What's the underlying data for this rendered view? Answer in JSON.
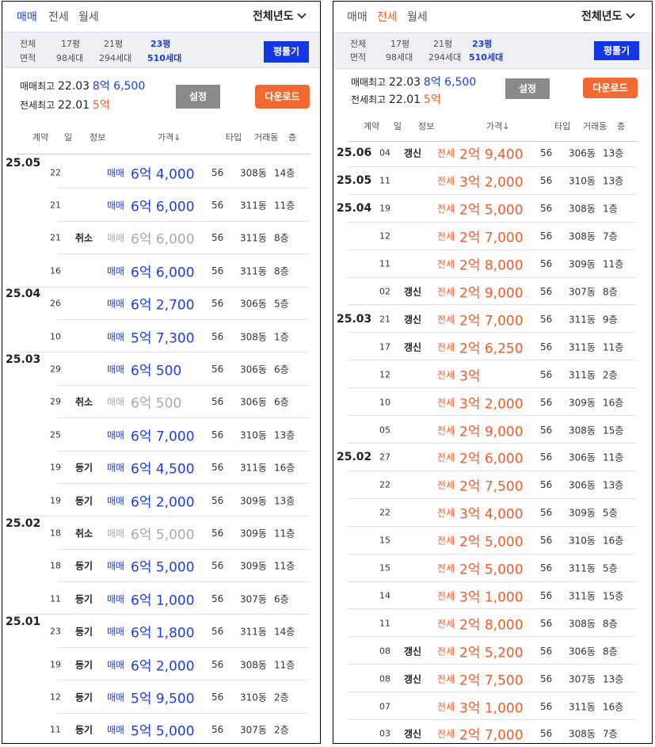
{
  "panels": [
    {
      "tabs": [
        {
          "label": "매매",
          "active": true
        },
        {
          "label": "전세",
          "active": false
        },
        {
          "label": "월세",
          "active": false
        }
      ],
      "year_select": "전체년도",
      "filter": {
        "row_labels": [
          "전체",
          "면적"
        ],
        "columns": [
          {
            "area": "17평",
            "households": "98세대",
            "active": false
          },
          {
            "area": "21평",
            "households": "294세대",
            "active": false
          },
          {
            "area": "23평",
            "households": "510세대",
            "active": true
          }
        ],
        "button": "평툴기"
      },
      "highlights": {
        "sale_label": "매매최고",
        "sale_date": "22.03",
        "sale_price": "8억 6,500",
        "jeonse_label": "전세최고",
        "jeonse_date": "22.01",
        "jeonse_price": "5억"
      },
      "settings_button": "설정",
      "download_button": "다운로드",
      "headers": [
        "계약",
        "일",
        "정보",
        "가격↓",
        "타입",
        "거래동",
        "층"
      ],
      "rows": [
        {
          "ym": "25.05",
          "day": "22",
          "info": "",
          "kind": "매매",
          "amount": "6억 4,000",
          "type": "56",
          "building": "308동",
          "floor": "14층",
          "status": "sale"
        },
        {
          "ym": "",
          "day": "21",
          "info": "",
          "kind": "매매",
          "amount": "6억 6,000",
          "type": "56",
          "building": "311동",
          "floor": "11층",
          "status": "sale"
        },
        {
          "ym": "",
          "day": "21",
          "info": "취소",
          "kind": "매매",
          "amount": "6억 6,000",
          "type": "56",
          "building": "311동",
          "floor": "8층",
          "status": "cancel"
        },
        {
          "ym": "",
          "day": "16",
          "info": "",
          "kind": "매매",
          "amount": "6억 6,000",
          "type": "56",
          "building": "311동",
          "floor": "8층",
          "status": "sale"
        },
        {
          "ym": "25.04",
          "day": "26",
          "info": "",
          "kind": "매매",
          "amount": "6억 2,700",
          "type": "56",
          "building": "306동",
          "floor": "5층",
          "status": "sale"
        },
        {
          "ym": "",
          "day": "10",
          "info": "",
          "kind": "매매",
          "amount": "5억 7,300",
          "type": "56",
          "building": "308동",
          "floor": "1층",
          "status": "sale"
        },
        {
          "ym": "25.03",
          "day": "29",
          "info": "",
          "kind": "매매",
          "amount": "6억 500",
          "type": "56",
          "building": "306동",
          "floor": "6층",
          "status": "sale"
        },
        {
          "ym": "",
          "day": "29",
          "info": "취소",
          "kind": "매매",
          "amount": "6억 500",
          "type": "56",
          "building": "306동",
          "floor": "6층",
          "status": "cancel"
        },
        {
          "ym": "",
          "day": "25",
          "info": "",
          "kind": "매매",
          "amount": "6억 7,000",
          "type": "56",
          "building": "310동",
          "floor": "13층",
          "status": "sale"
        },
        {
          "ym": "",
          "day": "19",
          "info": "등기",
          "kind": "매매",
          "amount": "6억 4,500",
          "type": "56",
          "building": "311동",
          "floor": "16층",
          "status": "sale"
        },
        {
          "ym": "",
          "day": "19",
          "info": "등기",
          "kind": "매매",
          "amount": "6억 2,000",
          "type": "56",
          "building": "309동",
          "floor": "13층",
          "status": "sale"
        },
        {
          "ym": "25.02",
          "day": "18",
          "info": "취소",
          "kind": "매매",
          "amount": "6억 5,000",
          "type": "56",
          "building": "309동",
          "floor": "11층",
          "status": "cancel"
        },
        {
          "ym": "",
          "day": "18",
          "info": "등기",
          "kind": "매매",
          "amount": "6억 5,000",
          "type": "56",
          "building": "309동",
          "floor": "11층",
          "status": "sale"
        },
        {
          "ym": "",
          "day": "11",
          "info": "등기",
          "kind": "매매",
          "amount": "6억 1,000",
          "type": "56",
          "building": "307동",
          "floor": "6층",
          "status": "sale"
        },
        {
          "ym": "25.01",
          "day": "23",
          "info": "등기",
          "kind": "매매",
          "amount": "6억 1,800",
          "type": "56",
          "building": "311동",
          "floor": "14층",
          "status": "sale"
        },
        {
          "ym": "",
          "day": "19",
          "info": "등기",
          "kind": "매매",
          "amount": "6억 2,000",
          "type": "56",
          "building": "308동",
          "floor": "11층",
          "status": "sale"
        },
        {
          "ym": "",
          "day": "12",
          "info": "등기",
          "kind": "매매",
          "amount": "5억 9,500",
          "type": "56",
          "building": "310동",
          "floor": "2층",
          "status": "sale"
        },
        {
          "ym": "",
          "day": "11",
          "info": "등기",
          "kind": "매매",
          "amount": "5억 5,000",
          "type": "56",
          "building": "307동",
          "floor": "2층",
          "status": "sale"
        }
      ]
    },
    {
      "tabs": [
        {
          "label": "매매",
          "active": false
        },
        {
          "label": "전세",
          "active": true
        },
        {
          "label": "월세",
          "active": false
        }
      ],
      "year_select": "전체년도",
      "filter": {
        "row_labels": [
          "전체",
          "면적"
        ],
        "columns": [
          {
            "area": "17평",
            "households": "98세대",
            "active": false
          },
          {
            "area": "21평",
            "households": "294세대",
            "active": false
          },
          {
            "area": "23평",
            "households": "510세대",
            "active": true
          }
        ],
        "button": "평툴기"
      },
      "highlights": {
        "sale_label": "매매최고",
        "sale_date": "22.03",
        "sale_price": "8억 6,500",
        "jeonse_label": "전세최고",
        "jeonse_date": "22.01",
        "jeonse_price": "5억"
      },
      "settings_button": "설정",
      "download_button": "다운로드",
      "headers": [
        "계약",
        "일",
        "정보",
        "가격↓",
        "타입",
        "거래동",
        "층"
      ],
      "rows": [
        {
          "ym": "25.06",
          "day": "04",
          "info": "갱신",
          "kind": "전세",
          "amount": "2억 9,400",
          "type": "56",
          "building": "306동",
          "floor": "13층",
          "status": "jeonse"
        },
        {
          "ym": "25.05",
          "day": "11",
          "info": "",
          "kind": "전세",
          "amount": "3억 2,000",
          "type": "56",
          "building": "310동",
          "floor": "13층",
          "status": "jeonse"
        },
        {
          "ym": "25.04",
          "day": "19",
          "info": "",
          "kind": "전세",
          "amount": "2억 5,000",
          "type": "56",
          "building": "308동",
          "floor": "1층",
          "status": "jeonse"
        },
        {
          "ym": "",
          "day": "12",
          "info": "",
          "kind": "전세",
          "amount": "2억 7,000",
          "type": "56",
          "building": "308동",
          "floor": "7층",
          "status": "jeonse"
        },
        {
          "ym": "",
          "day": "11",
          "info": "",
          "kind": "전세",
          "amount": "2억 8,000",
          "type": "56",
          "building": "309동",
          "floor": "11층",
          "status": "jeonse"
        },
        {
          "ym": "",
          "day": "02",
          "info": "갱신",
          "kind": "전세",
          "amount": "2억 9,000",
          "type": "56",
          "building": "307동",
          "floor": "8층",
          "status": "jeonse"
        },
        {
          "ym": "25.03",
          "day": "21",
          "info": "갱신",
          "kind": "전세",
          "amount": "2억 7,000",
          "type": "56",
          "building": "311동",
          "floor": "9층",
          "status": "jeonse"
        },
        {
          "ym": "",
          "day": "17",
          "info": "갱신",
          "kind": "전세",
          "amount": "2억 6,250",
          "type": "56",
          "building": "311동",
          "floor": "11층",
          "status": "jeonse"
        },
        {
          "ym": "",
          "day": "12",
          "info": "",
          "kind": "전세",
          "amount": "3억",
          "type": "56",
          "building": "311동",
          "floor": "2층",
          "status": "jeonse"
        },
        {
          "ym": "",
          "day": "10",
          "info": "",
          "kind": "전세",
          "amount": "3억 2,000",
          "type": "56",
          "building": "309동",
          "floor": "16층",
          "status": "jeonse"
        },
        {
          "ym": "",
          "day": "05",
          "info": "",
          "kind": "전세",
          "amount": "2억 9,000",
          "type": "56",
          "building": "308동",
          "floor": "15층",
          "status": "jeonse"
        },
        {
          "ym": "25.02",
          "day": "27",
          "info": "",
          "kind": "전세",
          "amount": "2억 6,000",
          "type": "56",
          "building": "306동",
          "floor": "11층",
          "status": "jeonse"
        },
        {
          "ym": "",
          "day": "22",
          "info": "",
          "kind": "전세",
          "amount": "2억 7,500",
          "type": "56",
          "building": "306동",
          "floor": "13층",
          "status": "jeonse"
        },
        {
          "ym": "",
          "day": "22",
          "info": "",
          "kind": "전세",
          "amount": "3억 4,000",
          "type": "56",
          "building": "309동",
          "floor": "5층",
          "status": "jeonse"
        },
        {
          "ym": "",
          "day": "15",
          "info": "",
          "kind": "전세",
          "amount": "2억 5,000",
          "type": "56",
          "building": "310동",
          "floor": "16층",
          "status": "jeonse"
        },
        {
          "ym": "",
          "day": "15",
          "info": "",
          "kind": "전세",
          "amount": "2억 5,000",
          "type": "56",
          "building": "311동",
          "floor": "5층",
          "status": "jeonse"
        },
        {
          "ym": "",
          "day": "14",
          "info": "",
          "kind": "전세",
          "amount": "3억 1,000",
          "type": "56",
          "building": "311동",
          "floor": "15층",
          "status": "jeonse"
        },
        {
          "ym": "",
          "day": "11",
          "info": "",
          "kind": "전세",
          "amount": "2억 8,000",
          "type": "56",
          "building": "308동",
          "floor": "8층",
          "status": "jeonse"
        },
        {
          "ym": "",
          "day": "08",
          "info": "갱신",
          "kind": "전세",
          "amount": "2억 5,200",
          "type": "56",
          "building": "306동",
          "floor": "8층",
          "status": "jeonse"
        },
        {
          "ym": "",
          "day": "08",
          "info": "갱신",
          "kind": "전세",
          "amount": "2억 7,500",
          "type": "56",
          "building": "307동",
          "floor": "13층",
          "status": "jeonse"
        },
        {
          "ym": "",
          "day": "07",
          "info": "",
          "kind": "전세",
          "amount": "3억 1,000",
          "type": "56",
          "building": "311동",
          "floor": "16층",
          "status": "jeonse"
        },
        {
          "ym": "",
          "day": "03",
          "info": "갱신",
          "kind": "전세",
          "amount": "2억 7,000",
          "type": "56",
          "building": "308동",
          "floor": "7층",
          "status": "jeonse"
        }
      ]
    }
  ],
  "colors": {
    "sale": "#1a3ee8",
    "jeonse": "#f15c2a",
    "cancelled": "#aaaaaa",
    "button_blue": "#1437e6",
    "button_orange": "#f06a32"
  }
}
